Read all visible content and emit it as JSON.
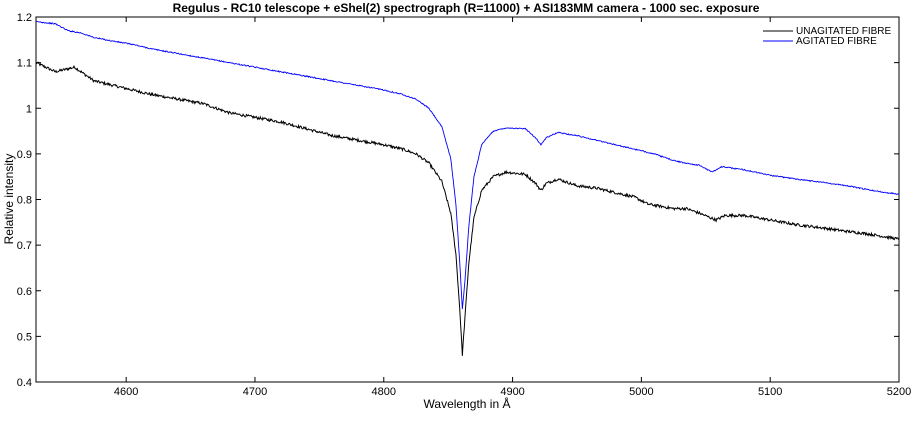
{
  "chart_data": {
    "type": "line",
    "title": "Regulus - RC10 telescope + eShel(2) spectrograph (R=11000) + ASI183MM camera - 1000 sec. exposure",
    "xlabel": "Wavelength in Å",
    "ylabel": "Relative intensity",
    "xlim": [
      4530,
      5200
    ],
    "ylim": [
      0.4,
      1.2
    ],
    "x_ticks": [
      4600,
      4700,
      4800,
      4900,
      5000,
      5100,
      5200
    ],
    "y_ticks": [
      0.4,
      0.5,
      0.6,
      0.7,
      0.8,
      0.9,
      1,
      1.1,
      1.2
    ],
    "grid": false,
    "legend_position": "top-right",
    "series": [
      {
        "name": "UNAGITATED FIBRE",
        "color": "#000000",
        "points": [
          [
            4530,
            1.1
          ],
          [
            4545,
            1.08
          ],
          [
            4560,
            1.09
          ],
          [
            4575,
            1.06
          ],
          [
            4590,
            1.05
          ],
          [
            4605,
            1.04
          ],
          [
            4620,
            1.03
          ],
          [
            4640,
            1.02
          ],
          [
            4660,
            1.01
          ],
          [
            4680,
            0.99
          ],
          [
            4700,
            0.98
          ],
          [
            4720,
            0.97
          ],
          [
            4740,
            0.955
          ],
          [
            4760,
            0.94
          ],
          [
            4780,
            0.93
          ],
          [
            4800,
            0.92
          ],
          [
            4815,
            0.91
          ],
          [
            4825,
            0.9
          ],
          [
            4835,
            0.88
          ],
          [
            4845,
            0.84
          ],
          [
            4852,
            0.77
          ],
          [
            4856,
            0.68
          ],
          [
            4859,
            0.56
          ],
          [
            4861,
            0.46
          ],
          [
            4863,
            0.54
          ],
          [
            4866,
            0.66
          ],
          [
            4870,
            0.76
          ],
          [
            4876,
            0.82
          ],
          [
            4885,
            0.85
          ],
          [
            4895,
            0.86
          ],
          [
            4910,
            0.855
          ],
          [
            4918,
            0.835
          ],
          [
            4922,
            0.82
          ],
          [
            4926,
            0.835
          ],
          [
            4935,
            0.845
          ],
          [
            4950,
            0.83
          ],
          [
            4965,
            0.825
          ],
          [
            4980,
            0.815
          ],
          [
            4995,
            0.805
          ],
          [
            5005,
            0.79
          ],
          [
            5015,
            0.785
          ],
          [
            5025,
            0.78
          ],
          [
            5035,
            0.78
          ],
          [
            5045,
            0.77
          ],
          [
            5058,
            0.755
          ],
          [
            5065,
            0.765
          ],
          [
            5080,
            0.765
          ],
          [
            5100,
            0.755
          ],
          [
            5120,
            0.745
          ],
          [
            5140,
            0.738
          ],
          [
            5160,
            0.73
          ],
          [
            5175,
            0.725
          ],
          [
            5190,
            0.718
          ],
          [
            5200,
            0.713
          ]
        ]
      },
      {
        "name": "AGITATED FIBRE",
        "color": "#0000ff",
        "points": [
          [
            4530,
            1.19
          ],
          [
            4545,
            1.185
          ],
          [
            4555,
            1.17
          ],
          [
            4565,
            1.165
          ],
          [
            4575,
            1.155
          ],
          [
            4590,
            1.147
          ],
          [
            4605,
            1.14
          ],
          [
            4620,
            1.13
          ],
          [
            4640,
            1.12
          ],
          [
            4660,
            1.11
          ],
          [
            4680,
            1.1
          ],
          [
            4700,
            1.09
          ],
          [
            4720,
            1.08
          ],
          [
            4740,
            1.07
          ],
          [
            4760,
            1.06
          ],
          [
            4780,
            1.05
          ],
          [
            4800,
            1.04
          ],
          [
            4815,
            1.03
          ],
          [
            4825,
            1.02
          ],
          [
            4835,
            1.0
          ],
          [
            4845,
            0.96
          ],
          [
            4852,
            0.89
          ],
          [
            4856,
            0.79
          ],
          [
            4859,
            0.66
          ],
          [
            4861,
            0.56
          ],
          [
            4863,
            0.62
          ],
          [
            4866,
            0.74
          ],
          [
            4870,
            0.85
          ],
          [
            4876,
            0.92
          ],
          [
            4885,
            0.95
          ],
          [
            4895,
            0.957
          ],
          [
            4910,
            0.955
          ],
          [
            4918,
            0.935
          ],
          [
            4922,
            0.92
          ],
          [
            4926,
            0.935
          ],
          [
            4935,
            0.947
          ],
          [
            4950,
            0.94
          ],
          [
            4965,
            0.93
          ],
          [
            4980,
            0.92
          ],
          [
            4995,
            0.91
          ],
          [
            5010,
            0.9
          ],
          [
            5020,
            0.89
          ],
          [
            5030,
            0.882
          ],
          [
            5045,
            0.875
          ],
          [
            5055,
            0.86
          ],
          [
            5062,
            0.872
          ],
          [
            5080,
            0.865
          ],
          [
            5100,
            0.853
          ],
          [
            5120,
            0.845
          ],
          [
            5140,
            0.838
          ],
          [
            5160,
            0.83
          ],
          [
            5175,
            0.822
          ],
          [
            5190,
            0.815
          ],
          [
            5200,
            0.812
          ]
        ]
      }
    ]
  }
}
